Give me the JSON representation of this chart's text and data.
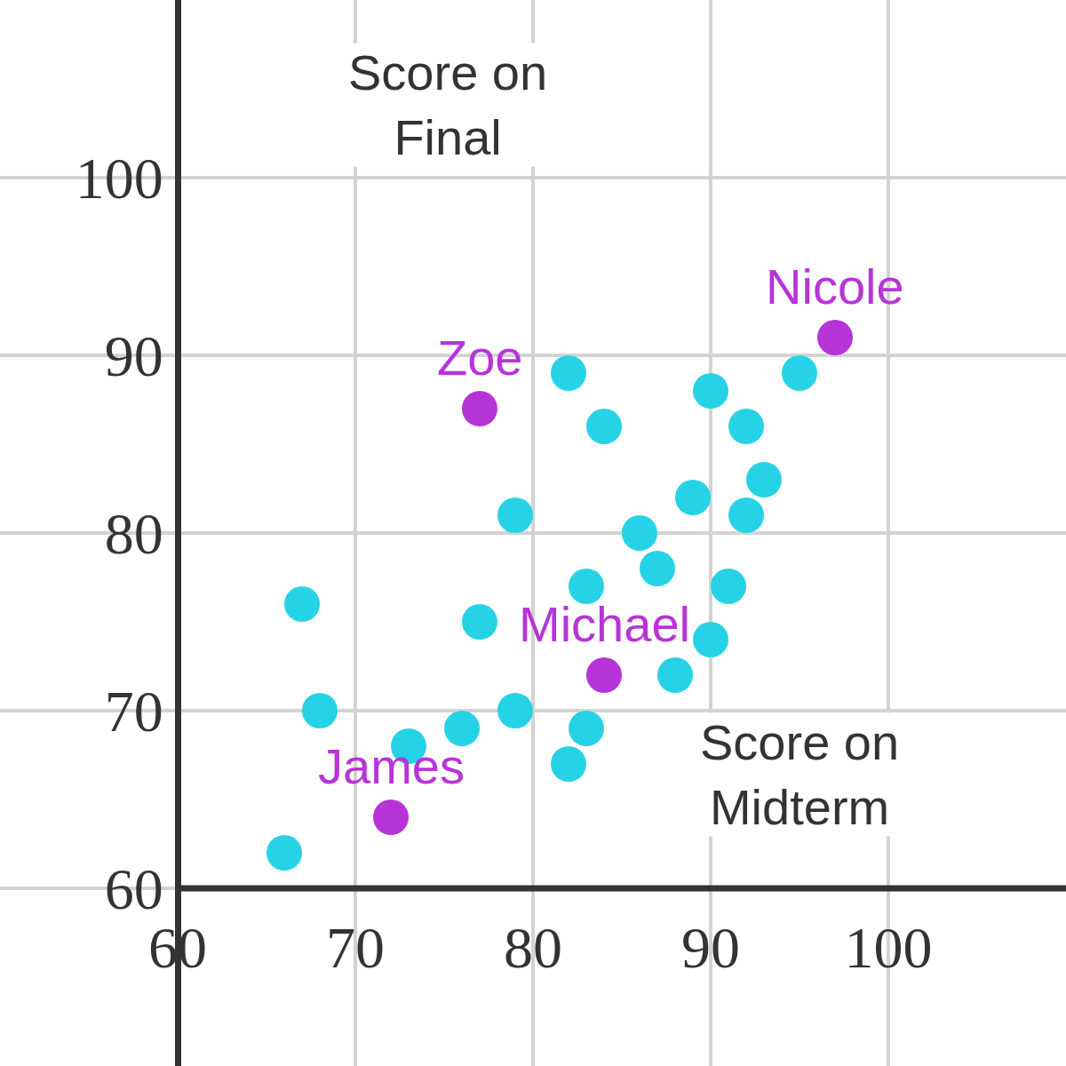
{
  "chart_data": {
    "type": "scatter",
    "xlabel": "Score on Midterm",
    "ylabel": "Score on Final",
    "series": [
      {
        "color": "#26d3e6",
        "x": [
          82,
          84,
          79,
          77,
          67,
          68,
          73,
          76,
          79,
          82,
          83,
          83,
          86,
          87,
          89,
          90,
          92,
          93,
          92,
          91,
          90,
          88,
          95,
          66
        ],
        "values": [
          89,
          86,
          81,
          75,
          76,
          70,
          68,
          69,
          70,
          67,
          69,
          77,
          80,
          78,
          82,
          88,
          86,
          83,
          81,
          77,
          74,
          72,
          89,
          62
        ]
      },
      {
        "color": "#b734d8",
        "x": [
          77,
          97,
          84,
          72
        ],
        "values": [
          87,
          91,
          72,
          64
        ]
      }
    ],
    "annotations": [
      {
        "text": "Zoe",
        "x": 77,
        "y": 87
      },
      {
        "text": "Nicole",
        "x": 97,
        "y": 91
      },
      {
        "text": "Michael",
        "x": 84,
        "y": 72
      },
      {
        "text": "James",
        "x": 72,
        "y": 64
      }
    ],
    "xlim": [
      50,
      110
    ],
    "ylim": [
      50,
      110
    ],
    "xticks": [
      60,
      70,
      80,
      90,
      100
    ],
    "yticks": [
      60,
      70,
      80,
      90,
      100
    ],
    "grid": true,
    "legend": false,
    "marker": "circle"
  }
}
